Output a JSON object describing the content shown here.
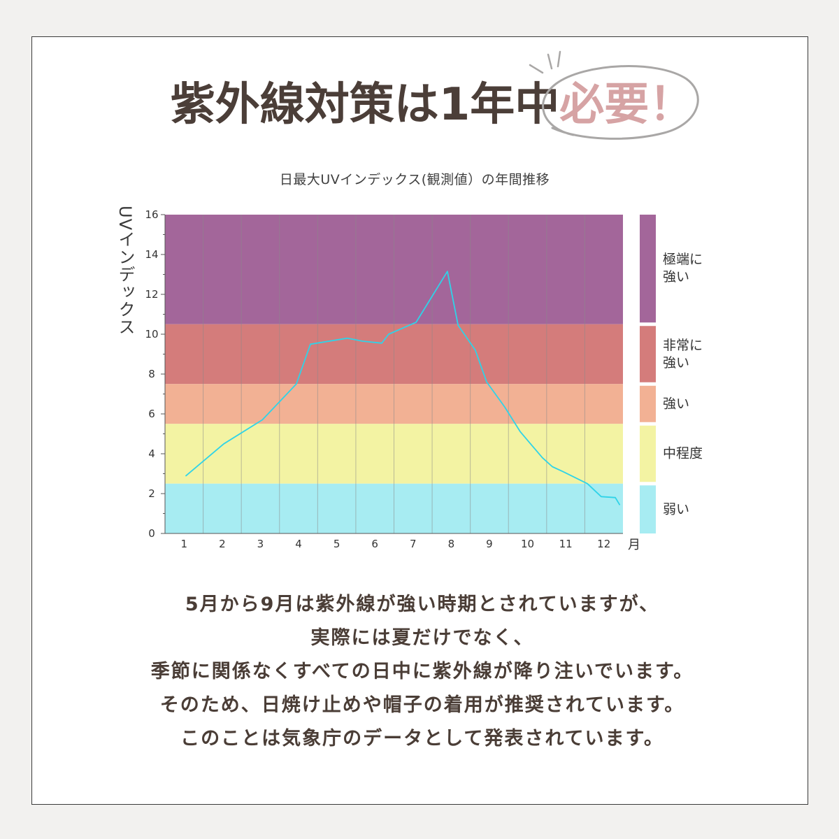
{
  "page": {
    "background": "#f2f1ef",
    "frame_background": "#ffffff",
    "frame_border": "#3a3a3a"
  },
  "title": {
    "main": "紫外線対策は1年中",
    "emphasis": "必要！",
    "main_color": "#4b3e38",
    "emphasis_color": "#d6a3a4",
    "scribble_color": "#a9a7a6"
  },
  "chart_data": {
    "type": "line",
    "title": "日最大UVインデックス(観測値）の年間推移",
    "xlabel": "月",
    "ylabel": "UVインデックス",
    "xlim": [
      0.5,
      12.5
    ],
    "ylim": [
      0,
      16
    ],
    "x_ticks": [
      1,
      2,
      3,
      4,
      5,
      6,
      7,
      8,
      9,
      10,
      11,
      12
    ],
    "y_ticks": [
      0,
      2,
      4,
      6,
      8,
      10,
      12,
      14,
      16
    ],
    "grid": {
      "x": true,
      "y": false
    },
    "legend_position": "right",
    "series": [
      {
        "x": [
          1.05,
          2.04,
          3.05,
          3.94,
          4.31,
          5.28,
          5.68,
          6.18,
          6.36,
          7.08,
          7.9,
          8.18,
          8.63,
          8.93,
          9.4,
          9.81,
          10.1,
          10.39,
          10.65,
          10.93,
          11.57,
          11.93,
          12.3,
          12.41
        ],
        "y": [
          2.9,
          4.5,
          5.7,
          7.5,
          9.5,
          9.8,
          9.65,
          9.55,
          10.0,
          10.6,
          13.15,
          10.45,
          9.2,
          7.6,
          6.35,
          5.1,
          4.45,
          3.8,
          3.35,
          3.1,
          2.5,
          1.85,
          1.8,
          1.45
        ],
        "color": "#2fd3e8"
      }
    ],
    "bands": [
      {
        "from": 10.5,
        "to": 16,
        "label": "極端に\n強い",
        "color": "#a3669a"
      },
      {
        "from": 7.5,
        "to": 10.5,
        "label": "非常に\n強い",
        "color": "#d47c7b"
      },
      {
        "from": 5.5,
        "to": 7.5,
        "label": "強い",
        "color": "#f2b194"
      },
      {
        "from": 2.5,
        "to": 5.5,
        "label": "中程度",
        "color": "#f3f3a3"
      },
      {
        "from": 0,
        "to": 2.5,
        "label": "弱い",
        "color": "#a7ecf2"
      }
    ]
  },
  "body": {
    "color": "#4a3d36",
    "lines": [
      "5月から9月は紫外線が強い時期とされていますが、",
      "実際には夏だけでなく、",
      "季節に関係なくすべての日中に紫外線が降り注いでいます。",
      "そのため、日焼け止めや帽子の着用が推奨されています。",
      "このことは気象庁のデータとして発表されています。"
    ]
  }
}
